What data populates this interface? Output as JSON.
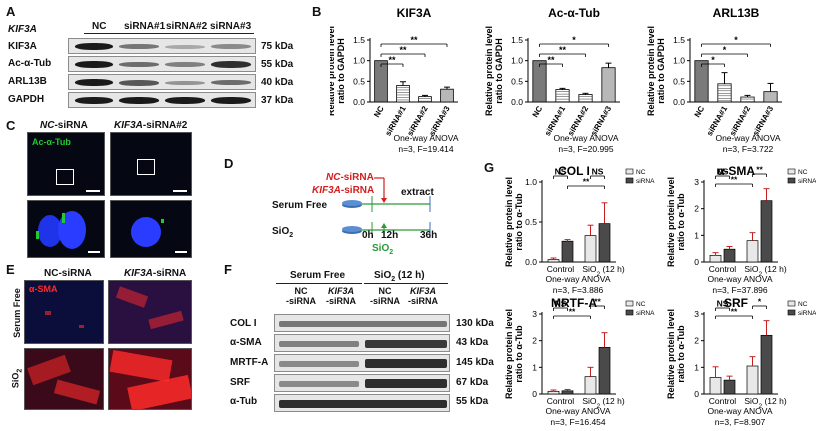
{
  "panels": {
    "A": "A",
    "B": "B",
    "C": "C",
    "D": "D",
    "E": "E",
    "F": "F",
    "G": "G"
  },
  "panel_a": {
    "gene": "KIF3A",
    "lanes": [
      "NC",
      "siRNA#1",
      "siRNA#2",
      "siRNA#3"
    ],
    "proteins": [
      {
        "name": "KIF3A",
        "kda": "75 kDa"
      },
      {
        "name": "Ac-α-Tub",
        "kda": "55 kDa"
      },
      {
        "name": "ARL13B",
        "kda": "40 kDa"
      },
      {
        "name": "GAPDH",
        "kda": "37 kDa"
      }
    ]
  },
  "panel_c": {
    "title_nc_prefix": "NC",
    "title_nc_suffix": "-siRNA",
    "title_kif_prefix": "KIF3A",
    "title_kif_suffix": "-siRNA#2",
    "stain": "Ac-α-Tub"
  },
  "panel_e": {
    "title_nc": "NC-siRNA",
    "title_kif_prefix": "KIF3A",
    "title_kif_suffix": "-siRNA",
    "stain": "α-SMA",
    "row1": "Serum Free",
    "row2_base": "SiO",
    "row2_sub": "2"
  },
  "panel_d": {
    "nc": "NC",
    "nc_suffix": "-siRNA",
    "kif": "KIF3A",
    "kif_suffix": "-siRNA",
    "extract": "extract",
    "serum_free": "Serum Free",
    "sio2_base": "SiO",
    "sio2_sub": "2",
    "t0": "0h",
    "t12": "12h",
    "t36": "36h"
  },
  "panel_f": {
    "group1": "Serum Free",
    "group2_base": "SiO",
    "group2_sub": "2",
    "group2_tail": " (12 h)",
    "lanes": [
      {
        "line1": "NC",
        "line2": "-siRNA",
        "italic": false
      },
      {
        "line1": "KIF3A",
        "line2": "-siRNA",
        "italic": true
      },
      {
        "line1": "NC",
        "line2": "-siRNA",
        "italic": false
      },
      {
        "line1": "KIF3A",
        "line2": "-siRNA",
        "italic": true
      }
    ],
    "proteins": [
      {
        "name": "COL I",
        "kda": "130 kDa"
      },
      {
        "name": "α-SMA",
        "kda": "43 kDa"
      },
      {
        "name": "MRTF-A",
        "kda": "145 kDa"
      },
      {
        "name": "SRF",
        "kda": "67 kDa"
      },
      {
        "name": "α-Tub",
        "kda": "55 kDa"
      }
    ]
  },
  "colors": {
    "nc_bar": "#e8e8e8",
    "sirna_bar": "#4a4a4a",
    "err_red": "#c81e1e",
    "b_nc": "#7a7a7a",
    "dapi": "#2a3cff",
    "green": "#23c832",
    "red": "#ff2a2a"
  },
  "chart_data": [
    {
      "id": "b_kif3a",
      "type": "bar",
      "title": "KIF3A",
      "ylabel": "Relative protein level ratio to GAPDH",
      "ylim": [
        0,
        1.5
      ],
      "yticks": [
        0.0,
        0.5,
        1.0,
        1.5
      ],
      "categories": [
        "NC",
        "siRNA#1",
        "siRNA#2",
        "siRNA#3"
      ],
      "values": [
        1.0,
        0.4,
        0.13,
        0.31
      ],
      "errors": [
        0,
        0.09,
        0.03,
        0.05
      ],
      "brackets": [
        "**",
        "**",
        "**"
      ],
      "stat_lines": [
        "One-way ANOVA",
        "n=3, F=19.414"
      ]
    },
    {
      "id": "b_actub",
      "type": "bar",
      "title": "Ac-α-Tub",
      "ylabel": "Relative protein level ratio to GAPDH",
      "ylim": [
        0,
        1.5
      ],
      "yticks": [
        0.0,
        0.5,
        1.0,
        1.5
      ],
      "categories": [
        "NC",
        "siRNA#1",
        "siRNA#2",
        "siRNA#3"
      ],
      "values": [
        1.0,
        0.3,
        0.18,
        0.83
      ],
      "errors": [
        0,
        0.03,
        0.03,
        0.11
      ],
      "brackets": [
        "**",
        "**",
        "*"
      ],
      "stat_lines": [
        "One-way ANOVA",
        "n=3, F=20.995"
      ]
    },
    {
      "id": "b_arl13b",
      "type": "bar",
      "title": "ARL13B",
      "ylabel": "Relative protein level ratio to GAPDH",
      "ylim": [
        0,
        1.5
      ],
      "yticks": [
        0.0,
        0.5,
        1.0,
        1.5
      ],
      "categories": [
        "NC",
        "siRNA#1",
        "siRNA#2",
        "siRNA#3"
      ],
      "values": [
        1.0,
        0.44,
        0.12,
        0.25
      ],
      "errors": [
        0,
        0.27,
        0.04,
        0.2
      ],
      "brackets": [
        "*",
        "*",
        "*"
      ],
      "stat_lines": [
        "One-way ANOVA",
        "n=3, F=3.722"
      ]
    },
    {
      "id": "g_col1",
      "type": "bar",
      "title": "COL I",
      "ylabel": "Relative protein level ratio to α-Tub",
      "ylim": [
        0,
        1
      ],
      "yticks": [
        0.0,
        0.5,
        1.0
      ],
      "groups": [
        "Control",
        "SiO2 (12 h)"
      ],
      "series": [
        {
          "name": "NC",
          "values": [
            0.03,
            0.33
          ],
          "errors": [
            0.02,
            0.13
          ]
        },
        {
          "name": "siRNA",
          "values": [
            0.26,
            0.48
          ],
          "errors": [
            0.02,
            0.26
          ]
        }
      ],
      "brackets": [
        "NS",
        "NS",
        "**"
      ],
      "stat_lines": [
        "One-way ANOVA",
        "n=3, F=3.886"
      ]
    },
    {
      "id": "g_asma",
      "type": "bar",
      "title": "α-SMA",
      "ylabel": "Relative protein level ratio to α-Tub",
      "ylim": [
        0,
        3
      ],
      "yticks": [
        0,
        1,
        2,
        3
      ],
      "groups": [
        "Control",
        "SiO2 (12 h)"
      ],
      "series": [
        {
          "name": "NC",
          "values": [
            0.25,
            0.8
          ],
          "errors": [
            0.1,
            0.3
          ]
        },
        {
          "name": "siRNA",
          "values": [
            0.48,
            2.3
          ],
          "errors": [
            0.1,
            0.45
          ]
        }
      ],
      "brackets": [
        "NS",
        "**",
        "**"
      ],
      "stat_lines": [
        "One-way ANOVA",
        "n=3, F=37.896"
      ]
    },
    {
      "id": "g_mrtfa",
      "type": "bar",
      "title": "MRTF-A",
      "ylabel": "Relative protein level ratio to α-Tub",
      "ylim": [
        0,
        3
      ],
      "yticks": [
        0,
        1,
        2,
        3
      ],
      "groups": [
        "Control",
        "SiO2 (12 h)"
      ],
      "series": [
        {
          "name": "NC",
          "values": [
            0.1,
            0.65
          ],
          "errors": [
            0.05,
            0.35
          ]
        },
        {
          "name": "siRNA",
          "values": [
            0.12,
            1.75
          ],
          "errors": [
            0.05,
            0.55
          ]
        }
      ],
      "brackets": [
        "NS",
        "**",
        "**"
      ],
      "stat_lines": [
        "One-way ANOVA",
        "n=3, F=16.454"
      ]
    },
    {
      "id": "g_srf",
      "type": "bar",
      "title": "SRF",
      "ylabel": "Relative protein level ratio to α-Tub",
      "ylim": [
        0,
        3
      ],
      "yticks": [
        0,
        1,
        2,
        3
      ],
      "groups": [
        "Control",
        "SiO2 (12 h)"
      ],
      "series": [
        {
          "name": "NC",
          "values": [
            0.62,
            1.05
          ],
          "errors": [
            0.4,
            0.35
          ]
        },
        {
          "name": "siRNA",
          "values": [
            0.52,
            2.2
          ],
          "errors": [
            0.15,
            0.55
          ]
        }
      ],
      "brackets": [
        "NS",
        "**",
        "*"
      ],
      "stat_lines": [
        "One-way ANOVA",
        "n=3, F=8.907"
      ]
    }
  ]
}
